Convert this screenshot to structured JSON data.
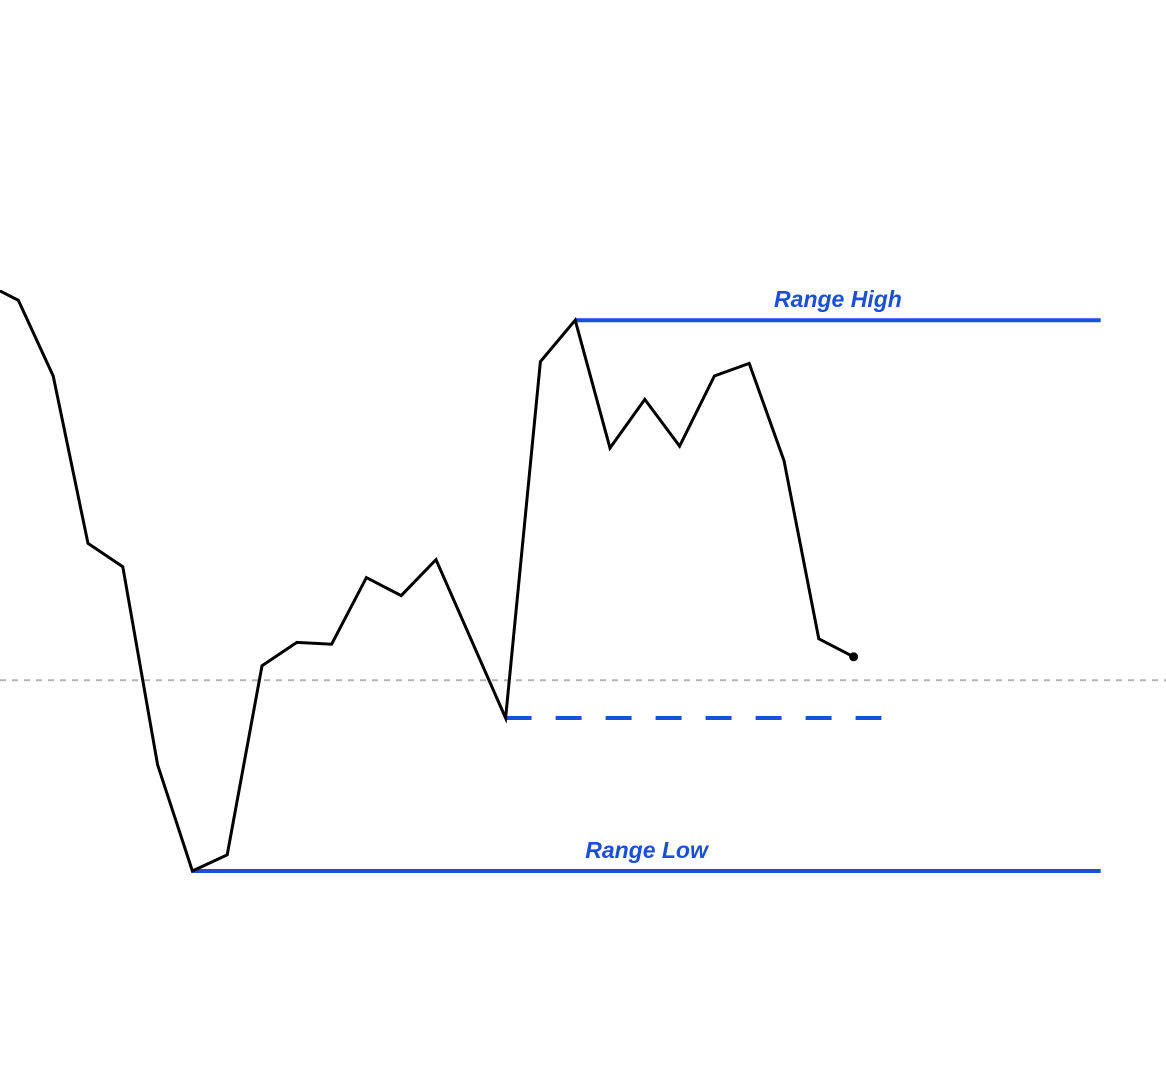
{
  "chart_data": {
    "type": "line",
    "title": "",
    "xlabel": "",
    "ylabel": "",
    "grid": false,
    "legend": "none",
    "colors": {
      "price_line": "#000000",
      "range_lines": "#1a4fd8",
      "reference_line": "#b4b4b4"
    },
    "xlim": [
      0,
      33.5
    ],
    "ylim": [
      0,
      61.5
    ],
    "series": [
      {
        "values": [
          [
            0,
            43.7
          ],
          [
            0.5,
            43.2
          ],
          [
            1.5,
            39.0
          ],
          [
            2.5,
            29.7
          ],
          [
            3.5,
            28.4
          ],
          [
            4.5,
            17.4
          ],
          [
            5.5,
            11.5
          ],
          [
            6.5,
            12.4
          ],
          [
            7.5,
            22.9
          ],
          [
            8.5,
            24.2
          ],
          [
            9.5,
            24.1
          ],
          [
            10.5,
            27.8
          ],
          [
            11.5,
            26.8
          ],
          [
            12.5,
            28.8
          ],
          [
            14.5,
            20.0
          ],
          [
            15.5,
            39.8
          ],
          [
            16.5,
            42.1
          ],
          [
            17.5,
            35.0
          ],
          [
            18.5,
            37.7
          ],
          [
            19.5,
            35.1
          ],
          [
            20.5,
            39.0
          ],
          [
            21.5,
            39.7
          ],
          [
            22.5,
            34.3
          ],
          [
            23.5,
            24.4
          ],
          [
            24.5,
            23.4
          ]
        ]
      }
    ],
    "horizontal_lines": [
      {
        "label": "Range High",
        "value": 42.1,
        "x_start": 16.5,
        "x_end": 31.6,
        "style": "solid"
      },
      {
        "label": "Range Low",
        "value": 11.5,
        "x_start": 5.5,
        "x_end": 31.6,
        "style": "solid"
      },
      {
        "label": "",
        "value": 20.0,
        "x_start": 14.5,
        "x_end": 25.3,
        "style": "dashed"
      },
      {
        "label": "",
        "value": 22.1,
        "x_start": 0,
        "x_end": 33.5,
        "style": "dotted"
      }
    ],
    "annotations": [
      {
        "text": "Range High",
        "attached_to": 0
      },
      {
        "text": "Range Low",
        "attached_to": 1
      }
    ],
    "end_marker": {
      "x": 24.5,
      "y": 23.4
    }
  }
}
